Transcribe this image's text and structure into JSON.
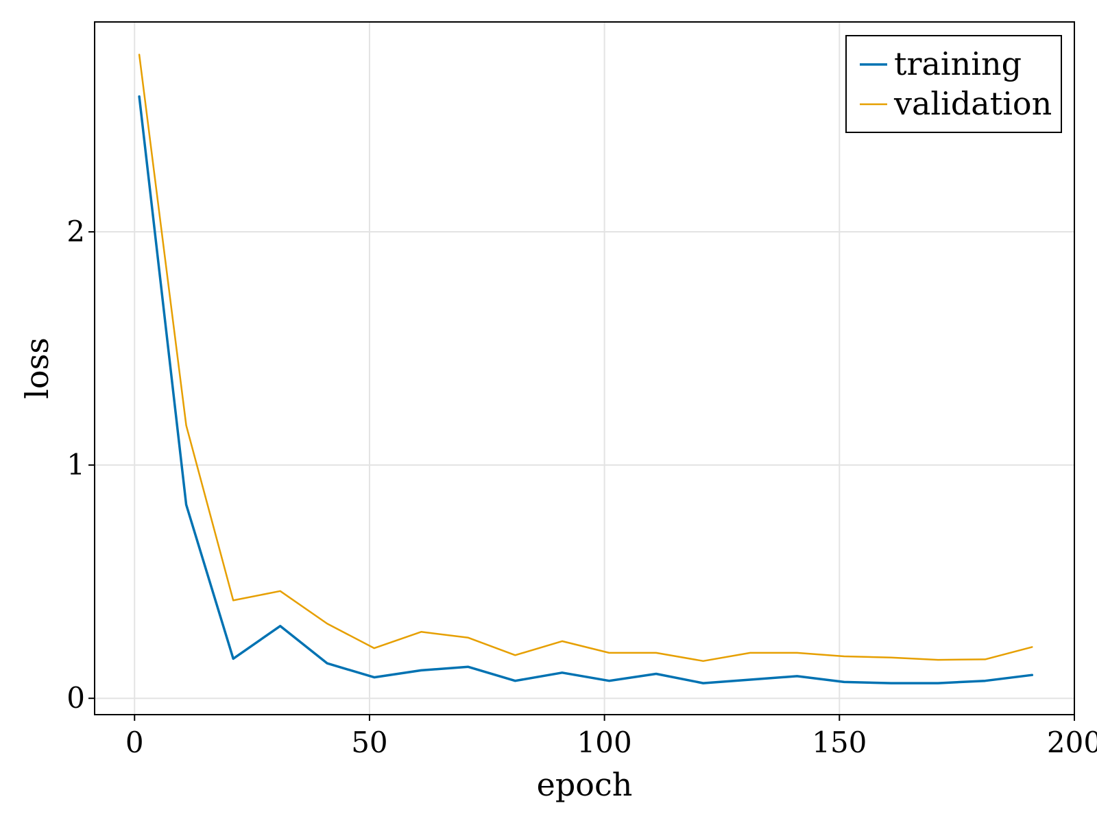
{
  "chart_data": {
    "type": "line",
    "xlabel": "epoch",
    "ylabel": "loss",
    "xlim": [
      -8.5,
      200
    ],
    "ylim": [
      -0.07,
      2.9
    ],
    "xticks": [
      0,
      50,
      100,
      150,
      200
    ],
    "yticks": [
      0,
      1,
      2
    ],
    "xtick_labels": [
      "0",
      "50",
      "100",
      "150",
      "200"
    ],
    "ytick_labels": [
      "0",
      "1",
      "2"
    ],
    "grid": true,
    "legend_position": "top-right",
    "x": [
      1,
      11,
      21,
      31,
      41,
      51,
      61,
      71,
      81,
      91,
      101,
      111,
      121,
      131,
      141,
      151,
      161,
      171,
      181,
      191
    ],
    "series": [
      {
        "name": "training",
        "color": "#0072b2",
        "width": 3.5,
        "values": [
          2.58,
          0.83,
          0.17,
          0.31,
          0.15,
          0.09,
          0.12,
          0.135,
          0.075,
          0.11,
          0.075,
          0.105,
          0.065,
          0.08,
          0.095,
          0.07,
          0.065,
          0.065,
          0.075,
          0.1
        ]
      },
      {
        "name": "validation",
        "color": "#e69f00",
        "width": 2.5,
        "values": [
          2.76,
          1.17,
          0.42,
          0.46,
          0.32,
          0.215,
          0.285,
          0.26,
          0.185,
          0.245,
          0.195,
          0.195,
          0.16,
          0.195,
          0.195,
          0.18,
          0.175,
          0.165,
          0.167,
          0.22
        ]
      }
    ]
  }
}
